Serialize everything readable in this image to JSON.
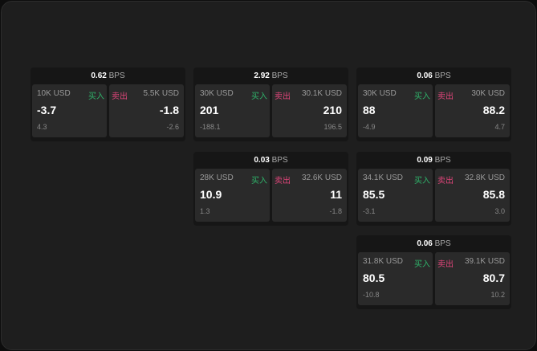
{
  "unit": "BPS",
  "buy_label": "买入",
  "sell_label": "卖出",
  "colors": {
    "buy": "#2fb36a",
    "sell": "#e0457a"
  },
  "cards": [
    {
      "spread": "0.62",
      "buy": {
        "size": "10K USD",
        "price": "-3.7",
        "change": "4.3"
      },
      "sell": {
        "size": "5.5K USD",
        "price": "-1.8",
        "change": "-2.6"
      }
    },
    {
      "spread": "2.92",
      "buy": {
        "size": "30K USD",
        "price": "201",
        "change": "-188.1"
      },
      "sell": {
        "size": "30.1K USD",
        "price": "210",
        "change": "196.5"
      }
    },
    {
      "spread": "0.06",
      "buy": {
        "size": "30K USD",
        "price": "88",
        "change": "-4.9"
      },
      "sell": {
        "size": "30K USD",
        "price": "88.2",
        "change": "4.7"
      }
    },
    {
      "spread": "0.03",
      "buy": {
        "size": "28K USD",
        "price": "10.9",
        "change": "1.3"
      },
      "sell": {
        "size": "32.6K USD",
        "price": "11",
        "change": "-1.8"
      }
    },
    {
      "spread": "0.09",
      "buy": {
        "size": "34.1K USD",
        "price": "85.5",
        "change": "-3.1"
      },
      "sell": {
        "size": "32.8K USD",
        "price": "85.8",
        "change": "3.0"
      }
    },
    {
      "spread": "0.06",
      "buy": {
        "size": "31.8K USD",
        "price": "80.5",
        "change": "-10.8"
      },
      "sell": {
        "size": "39.1K USD",
        "price": "80.7",
        "change": "10.2"
      }
    }
  ]
}
